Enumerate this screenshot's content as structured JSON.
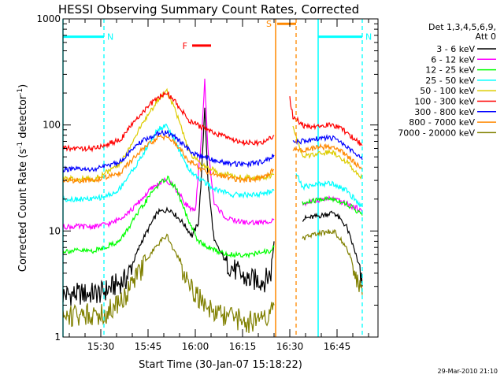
{
  "chart_data": {
    "type": "line",
    "title": "HESSI Observing Summary Count Rates, Corrected",
    "xlabel": "Start Time (30-Jan-07 15:18:22)",
    "ylabel_main": "Corrected Count Rate (s",
    "ylabel_sup1": "-1",
    "ylabel_mid": " detector",
    "ylabel_sup2": "-1",
    "ylabel_end": ")",
    "y_scale": "log",
    "ylim": [
      1,
      1000
    ],
    "xlim": [
      "15:18",
      "16:58"
    ],
    "x_tick_labels": [
      "15:30",
      "15:45",
      "16:00",
      "16:15",
      "16:30",
      "16:45"
    ],
    "y_tick_labels": [
      "1",
      "10",
      "100",
      "1000"
    ],
    "legend_header": [
      "Det 1,3,4,5,6,9,",
      "Att 0"
    ],
    "legend_position": "right, outside plot",
    "footer": "29-Mar-2010 21:10",
    "series": [
      {
        "name": "3 - 6 keV",
        "color": "#000000",
        "points": [
          [
            "15:18",
            2.5
          ],
          [
            "15:30",
            2.6
          ],
          [
            "15:38",
            3.5
          ],
          [
            "15:43",
            8
          ],
          [
            "15:48",
            15
          ],
          [
            "15:52",
            16
          ],
          [
            "15:56",
            12
          ],
          [
            "15:59",
            9
          ],
          [
            "16:01",
            12
          ],
          [
            "16:02",
            35
          ],
          [
            "16:03",
            150
          ],
          [
            "16:04",
            30
          ],
          [
            "16:06",
            8
          ],
          [
            "16:10",
            5
          ],
          [
            "16:16",
            3.5
          ],
          [
            "16:22",
            3.4
          ],
          [
            "16:24",
            4
          ],
          [
            "16:25",
            8
          ]
        ],
        "points2": [
          [
            "16:34",
            13
          ],
          [
            "16:40",
            14
          ],
          [
            "16:44",
            15
          ],
          [
            "16:48",
            11
          ],
          [
            "16:51",
            6
          ],
          [
            "16:53",
            3
          ]
        ]
      },
      {
        "name": "6 - 12 keV",
        "color": "#ff00ff",
        "points": [
          [
            "15:18",
            11
          ],
          [
            "15:28",
            11
          ],
          [
            "15:34",
            12
          ],
          [
            "15:40",
            16
          ],
          [
            "15:46",
            25
          ],
          [
            "15:50",
            30
          ],
          [
            "15:53",
            27
          ],
          [
            "15:57",
            18
          ],
          [
            "16:00",
            15
          ],
          [
            "16:02",
            80
          ],
          [
            "16:03",
            260
          ],
          [
            "16:04",
            60
          ],
          [
            "16:06",
            18
          ],
          [
            "16:10",
            13
          ],
          [
            "16:16",
            12
          ],
          [
            "16:22",
            12
          ],
          [
            "16:25",
            13
          ]
        ],
        "points2": [
          [
            "16:34",
            18
          ],
          [
            "16:40",
            20
          ],
          [
            "16:44",
            20
          ],
          [
            "16:48",
            18
          ],
          [
            "16:52",
            16
          ],
          [
            "16:53",
            15
          ]
        ]
      },
      {
        "name": "12 - 25 keV",
        "color": "#00ff00",
        "points": [
          [
            "15:18",
            6.5
          ],
          [
            "15:28",
            6.5
          ],
          [
            "15:36",
            8
          ],
          [
            "15:42",
            15
          ],
          [
            "15:47",
            25
          ],
          [
            "15:51",
            32
          ],
          [
            "15:54",
            25
          ],
          [
            "15:58",
            12
          ],
          [
            "16:01",
            8
          ],
          [
            "16:04",
            7
          ],
          [
            "16:10",
            6
          ],
          [
            "16:18",
            6
          ],
          [
            "16:24",
            6.5
          ],
          [
            "16:25",
            7
          ]
        ],
        "points2": [
          [
            "16:34",
            18
          ],
          [
            "16:40",
            20
          ],
          [
            "16:44",
            20
          ],
          [
            "16:48",
            18
          ],
          [
            "16:52",
            15
          ],
          [
            "16:53",
            14
          ]
        ]
      },
      {
        "name": "25 - 50 keV",
        "color": "#00ffff",
        "points": [
          [
            "15:18",
            20
          ],
          [
            "15:28",
            20
          ],
          [
            "15:35",
            23
          ],
          [
            "15:42",
            45
          ],
          [
            "15:48",
            90
          ],
          [
            "15:51",
            100
          ],
          [
            "15:54",
            65
          ],
          [
            "15:58",
            38
          ],
          [
            "16:02",
            30
          ],
          [
            "16:06",
            25
          ],
          [
            "16:12",
            22
          ],
          [
            "16:20",
            22
          ],
          [
            "16:25",
            24
          ]
        ],
        "points2": [
          [
            "16:32",
            35
          ],
          [
            "16:34",
            26
          ],
          [
            "16:40",
            28
          ],
          [
            "16:44",
            28
          ],
          [
            "16:48",
            24
          ],
          [
            "16:52",
            18
          ],
          [
            "16:53",
            17
          ]
        ]
      },
      {
        "name": "50 - 100 keV",
        "color": "#ddcc00",
        "points": [
          [
            "15:18",
            31
          ],
          [
            "15:28",
            31
          ],
          [
            "15:36",
            42
          ],
          [
            "15:43",
            100
          ],
          [
            "15:48",
            170
          ],
          [
            "15:51",
            210
          ],
          [
            "15:54",
            130
          ],
          [
            "15:58",
            55
          ],
          [
            "16:02",
            42
          ],
          [
            "16:08",
            35
          ],
          [
            "16:15",
            32
          ],
          [
            "16:22",
            32
          ],
          [
            "16:25",
            34
          ]
        ],
        "points2": [
          [
            "16:31",
            100
          ],
          [
            "16:34",
            50
          ],
          [
            "16:40",
            55
          ],
          [
            "16:44",
            55
          ],
          [
            "16:48",
            45
          ],
          [
            "16:52",
            34
          ],
          [
            "16:53",
            32
          ]
        ]
      },
      {
        "name": "100 - 300 keV",
        "color": "#ff0000",
        "points": [
          [
            "15:18",
            60
          ],
          [
            "15:28",
            60
          ],
          [
            "15:36",
            72
          ],
          [
            "15:43",
            130
          ],
          [
            "15:48",
            180
          ],
          [
            "15:51",
            200
          ],
          [
            "15:54",
            160
          ],
          [
            "15:58",
            110
          ],
          [
            "16:02",
            95
          ],
          [
            "16:08",
            80
          ],
          [
            "16:15",
            68
          ],
          [
            "16:22",
            68
          ],
          [
            "16:25",
            80
          ]
        ],
        "points2": [
          [
            "16:30",
            180
          ],
          [
            "16:31",
            120
          ],
          [
            "16:35",
            95
          ],
          [
            "16:40",
            100
          ],
          [
            "16:44",
            100
          ],
          [
            "16:48",
            85
          ],
          [
            "16:52",
            68
          ],
          [
            "16:53",
            64
          ]
        ]
      },
      {
        "name": "300 - 800 keV",
        "color": "#0000ff",
        "points": [
          [
            "15:18",
            38
          ],
          [
            "15:28",
            38
          ],
          [
            "15:36",
            45
          ],
          [
            "15:43",
            70
          ],
          [
            "15:48",
            82
          ],
          [
            "15:51",
            85
          ],
          [
            "15:54",
            75
          ],
          [
            "15:58",
            58
          ],
          [
            "16:02",
            50
          ],
          [
            "16:08",
            45
          ],
          [
            "16:15",
            42
          ],
          [
            "16:22",
            45
          ],
          [
            "16:25",
            52
          ]
        ],
        "points2": [
          [
            "16:31",
            70
          ],
          [
            "16:35",
            70
          ],
          [
            "16:40",
            75
          ],
          [
            "16:44",
            75
          ],
          [
            "16:48",
            62
          ],
          [
            "16:52",
            50
          ],
          [
            "16:53",
            47
          ]
        ]
      },
      {
        "name": "800 - 7000 keV",
        "color": "#ff8800",
        "points": [
          [
            "15:18",
            30
          ],
          [
            "15:28",
            30
          ],
          [
            "15:36",
            35
          ],
          [
            "15:43",
            58
          ],
          [
            "15:48",
            75
          ],
          [
            "15:51",
            78
          ],
          [
            "15:54",
            65
          ],
          [
            "15:58",
            46
          ],
          [
            "16:02",
            38
          ],
          [
            "16:08",
            33
          ],
          [
            "16:15",
            30
          ],
          [
            "16:22",
            32
          ],
          [
            "16:25",
            38
          ]
        ],
        "points2": [
          [
            "16:31",
            58
          ],
          [
            "16:35",
            58
          ],
          [
            "16:40",
            62
          ],
          [
            "16:44",
            62
          ],
          [
            "16:48",
            52
          ],
          [
            "16:52",
            40
          ],
          [
            "16:53",
            38
          ]
        ]
      },
      {
        "name": "7000 - 20000 keV",
        "color": "#808000",
        "points": [
          [
            "15:18",
            1.6
          ],
          [
            "15:32",
            1.7
          ],
          [
            "15:38",
            2.5
          ],
          [
            "15:43",
            4.5
          ],
          [
            "15:48",
            7.5
          ],
          [
            "15:51",
            9
          ],
          [
            "15:54",
            6
          ],
          [
            "15:58",
            3.2
          ],
          [
            "16:02",
            2.2
          ],
          [
            "16:08",
            1.6
          ],
          [
            "16:16",
            1.4
          ],
          [
            "16:22",
            1.4
          ],
          [
            "16:25",
            2
          ]
        ],
        "points2": [
          [
            "16:34",
            8.5
          ],
          [
            "16:40",
            9.5
          ],
          [
            "16:44",
            10
          ],
          [
            "16:48",
            7
          ],
          [
            "16:51",
            4
          ],
          [
            "16:53",
            2.5
          ]
        ]
      }
    ],
    "annotations": [
      {
        "label": "N",
        "color": "#00ffff",
        "kind": "night",
        "y": 680,
        "solid_from": "15:18",
        "solid_to": "15:31",
        "dashed_at": "15:31"
      },
      {
        "label": "N",
        "color": "#00ffff",
        "kind": "night",
        "y": 680,
        "solid_from": "16:39",
        "solid_to": "16:53",
        "dashed_at": "16:53"
      },
      {
        "label": "S",
        "color": "#ff8800",
        "kind": "saa",
        "y": 900,
        "solid_from": "16:26",
        "solid_to": "16:32",
        "dashed_at": "16:32"
      },
      {
        "label": "F",
        "color": "#ff0000",
        "kind": "flare",
        "y": 560,
        "solid_from": "15:59",
        "solid_to": "16:05"
      }
    ],
    "vertical_markers": [
      {
        "time": "15:18",
        "color": "#00ffff",
        "style": "solid"
      },
      {
        "time": "16:39",
        "color": "#00ffff",
        "style": "solid"
      },
      {
        "time": "16:25.5",
        "color": "#ff8800",
        "style": "solid"
      }
    ]
  }
}
